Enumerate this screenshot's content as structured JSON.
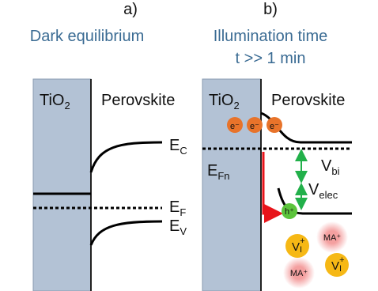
{
  "panel_a": {
    "label": "a)",
    "title": "Dark equilibrium",
    "tio2": {
      "base": "TiO",
      "sub": "2"
    },
    "perovskite": "Perovskite",
    "ec": {
      "base": "E",
      "sub": "C"
    },
    "ef": {
      "base": "E",
      "sub": "F"
    },
    "ev": {
      "base": "E",
      "sub": "V"
    }
  },
  "panel_b": {
    "label": "b)",
    "title_lines": [
      "Illumination time",
      "t >> 1 min"
    ],
    "tio2": {
      "base": "TiO",
      "sub": "2"
    },
    "perovskite": "Perovskite",
    "electrons": [
      "e⁻",
      "e⁻",
      "e⁻"
    ],
    "efn": {
      "base": "E",
      "sub": "Fn"
    },
    "vbi": {
      "base": "V",
      "sub": "bi"
    },
    "velec": {
      "base": "V",
      "sub": "elec"
    },
    "hole": "h⁺",
    "iodide_vacancies": [
      {
        "base": "V",
        "sub": "I",
        "sup": "+"
      },
      {
        "base": "V",
        "sub": "I",
        "sup": "+"
      }
    ],
    "ma_ions": [
      "MA⁺",
      "MA⁺"
    ]
  }
}
